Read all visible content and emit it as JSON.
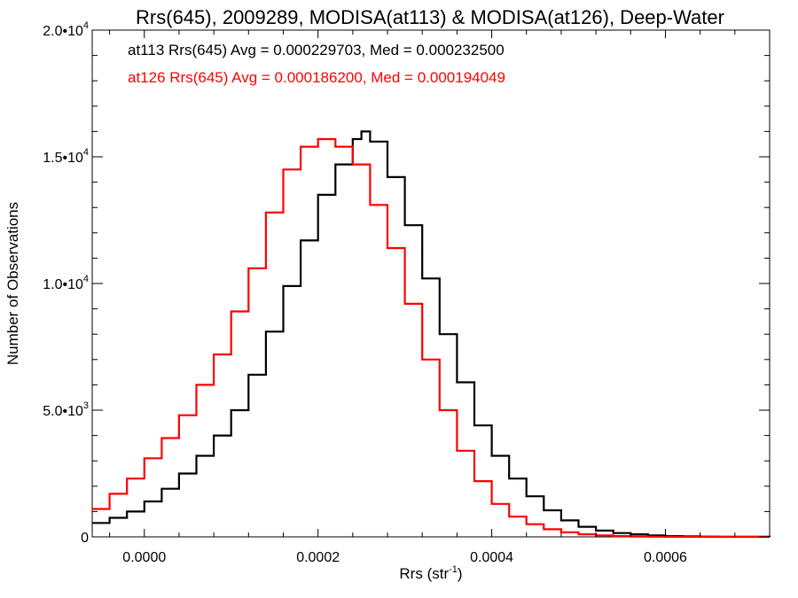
{
  "chart_data": {
    "type": "histogram-step",
    "title": "Rrs(645), 2009289, MODISA(at113) & MODISA(at126), Deep-Water",
    "xlabel": "Rrs (str",
    "xlabel_sup": "-1",
    "xlabel_suffix": ")",
    "ylabel": "Number of Observations",
    "xlim": [
      -6e-05,
      0.00072
    ],
    "ylim": [
      0,
      20000
    ],
    "grid": false,
    "legend_placement": "top-left",
    "x_ticks": [
      {
        "value": 0.0,
        "label": "0.0000"
      },
      {
        "value": 0.0002,
        "label": "0.0002"
      },
      {
        "value": 0.0004,
        "label": "0.0004"
      },
      {
        "value": 0.0006,
        "label": "0.0006"
      }
    ],
    "y_ticks": [
      {
        "value": 0,
        "label": "0",
        "sup": ""
      },
      {
        "value": 5000,
        "label": "5.0•10",
        "sup": "3"
      },
      {
        "value": 10000,
        "label": "1.0•10",
        "sup": "4"
      },
      {
        "value": 15000,
        "label": "1.5•10",
        "sup": "4"
      },
      {
        "value": 20000,
        "label": "2.0•10",
        "sup": "4"
      }
    ],
    "annotations": [
      {
        "text": "at113 Rrs(645) Avg = 0.000229703, Med = 0.000232500",
        "color": "#000000"
      },
      {
        "text": "at126 Rrs(645) Avg = 0.000186200, Med = 0.000194049",
        "color": "#ff0000"
      }
    ],
    "series": [
      {
        "color": "#000000",
        "x": [
          -6e-05,
          -4e-05,
          -2e-05,
          0.0,
          2e-05,
          4e-05,
          6e-05,
          8e-05,
          0.0001,
          0.00012,
          0.00014,
          0.00016,
          0.00018,
          0.0002,
          0.00022,
          0.00024,
          0.00025,
          0.00026,
          0.00028,
          0.0003,
          0.00032,
          0.00034,
          0.00036,
          0.00038,
          0.0004,
          0.00042,
          0.00044,
          0.00046,
          0.00048,
          0.0005,
          0.00052,
          0.00054,
          0.00056,
          0.00058,
          0.0006,
          0.00062,
          0.00064,
          0.00066,
          0.00068,
          0.0007,
          0.00072
        ],
        "values": [
          550,
          750,
          1000,
          1400,
          1900,
          2500,
          3200,
          4000,
          5000,
          6400,
          8100,
          9900,
          11700,
          13500,
          14700,
          15700,
          16000,
          15600,
          14200,
          12300,
          10200,
          8000,
          6100,
          4400,
          3200,
          2300,
          1600,
          1050,
          650,
          400,
          250,
          150,
          100,
          60,
          30,
          20,
          10,
          5,
          3,
          2,
          0
        ]
      },
      {
        "color": "#ff0000",
        "x": [
          -6e-05,
          -4e-05,
          -2e-05,
          0.0,
          2e-05,
          4e-05,
          6e-05,
          8e-05,
          0.0001,
          0.00012,
          0.00014,
          0.00016,
          0.00018,
          0.0002,
          0.00022,
          0.00024,
          0.00026,
          0.00028,
          0.0003,
          0.00032,
          0.00034,
          0.00036,
          0.00038,
          0.0004,
          0.00042,
          0.00044,
          0.00046,
          0.00048,
          0.0005,
          0.00052,
          0.00054,
          0.00056,
          0.00058,
          0.0006,
          0.00062,
          0.00064,
          0.00066,
          0.00068,
          0.0007,
          0.00072
        ],
        "values": [
          1100,
          1700,
          2300,
          3100,
          3900,
          4800,
          6000,
          7200,
          8900,
          10600,
          12800,
          14500,
          15400,
          15700,
          15400,
          14700,
          13100,
          11400,
          9200,
          7000,
          5000,
          3400,
          2200,
          1300,
          800,
          500,
          300,
          180,
          100,
          60,
          30,
          15,
          8,
          4,
          2,
          1,
          0,
          0,
          0,
          0
        ]
      }
    ]
  }
}
